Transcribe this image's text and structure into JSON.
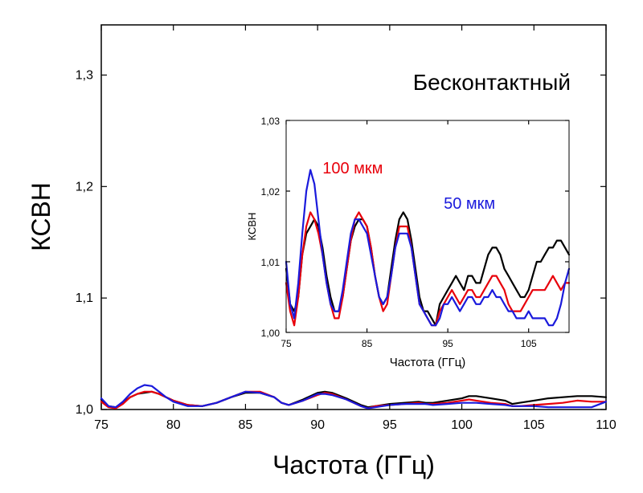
{
  "chart_data": [
    {
      "id": "main",
      "type": "line",
      "xlabel": "Частота (ГГц)",
      "ylabel": "КСВН",
      "annotation": "Бесконтактный",
      "xlim": [
        75,
        110
      ],
      "ylim": [
        1.0,
        1.345
      ],
      "xticks": [
        75,
        80,
        85,
        90,
        95,
        100,
        105,
        110
      ],
      "xtick_labels": [
        "75",
        "80",
        "85",
        "90",
        "95",
        "100",
        "105",
        "110"
      ],
      "yticks": [
        1.0,
        1.1,
        1.2,
        1.3
      ],
      "ytick_labels": [
        "1,0",
        "1,1",
        "1,2",
        "1,3"
      ],
      "grid": false,
      "series": [
        {
          "color": "#000000",
          "x": [
            75,
            75.5,
            76,
            76.5,
            77,
            77.5,
            78,
            78.5,
            79,
            79.5,
            80,
            81,
            82,
            83,
            84,
            85,
            86,
            87,
            87.5,
            88,
            89,
            90,
            90.5,
            91,
            92,
            93,
            93.5,
            94,
            95,
            96,
            97,
            97.5,
            98,
            99,
            100,
            100.5,
            101,
            102,
            103,
            103.5,
            104,
            105,
            106,
            107,
            108,
            109,
            110
          ],
          "y": [
            1.009,
            1.003,
            1.002,
            1.006,
            1.011,
            1.014,
            1.015,
            1.016,
            1.014,
            1.011,
            1.008,
            1.004,
            1.003,
            1.006,
            1.011,
            1.015,
            1.015,
            1.011,
            1.006,
            1.004,
            1.009,
            1.015,
            1.016,
            1.015,
            1.01,
            1.004,
            1.002,
            1.003,
            1.005,
            1.006,
            1.007,
            1.006,
            1.006,
            1.008,
            1.01,
            1.012,
            1.012,
            1.01,
            1.008,
            1.005,
            1.006,
            1.008,
            1.01,
            1.011,
            1.012,
            1.012,
            1.011
          ]
        },
        {
          "color": "#e8000b",
          "x": [
            75,
            75.5,
            76,
            76.5,
            77,
            77.5,
            78,
            78.5,
            79,
            79.5,
            80,
            81,
            82,
            83,
            84,
            85,
            86,
            87,
            87.5,
            88,
            89,
            90,
            90.5,
            91,
            92,
            93,
            93.5,
            94,
            95,
            96,
            97,
            97.5,
            98,
            99,
            100,
            100.5,
            101,
            102,
            103,
            103.5,
            104,
            105,
            106,
            107,
            108,
            109,
            110
          ],
          "y": [
            1.007,
            1.002,
            1.001,
            1.005,
            1.011,
            1.014,
            1.016,
            1.016,
            1.014,
            1.011,
            1.008,
            1.004,
            1.003,
            1.006,
            1.011,
            1.016,
            1.016,
            1.011,
            1.006,
            1.004,
            1.008,
            1.013,
            1.015,
            1.014,
            1.009,
            1.003,
            1.001,
            1.003,
            1.004,
            1.005,
            1.006,
            1.005,
            1.005,
            1.006,
            1.008,
            1.009,
            1.008,
            1.006,
            1.005,
            1.003,
            1.003,
            1.004,
            1.005,
            1.006,
            1.008,
            1.007,
            1.007
          ]
        },
        {
          "color": "#1a1adc",
          "x": [
            75,
            75.5,
            76,
            76.5,
            77,
            77.5,
            78,
            78.5,
            79,
            79.5,
            80,
            81,
            82,
            83,
            84,
            85,
            86,
            87,
            87.5,
            88,
            89,
            90,
            90.5,
            91,
            92,
            93,
            93.5,
            94,
            95,
            96,
            97,
            97.5,
            98,
            99,
            100,
            100.5,
            101,
            102,
            103,
            103.5,
            104,
            105,
            106,
            107,
            108,
            109,
            110
          ],
          "y": [
            1.01,
            1.003,
            1.002,
            1.007,
            1.014,
            1.019,
            1.022,
            1.021,
            1.016,
            1.011,
            1.007,
            1.003,
            1.003,
            1.006,
            1.011,
            1.016,
            1.015,
            1.011,
            1.006,
            1.004,
            1.008,
            1.014,
            1.014,
            1.013,
            1.009,
            1.003,
            1.001,
            1.002,
            1.004,
            1.005,
            1.005,
            1.005,
            1.004,
            1.005,
            1.006,
            1.006,
            1.006,
            1.005,
            1.004,
            1.003,
            1.003,
            1.003,
            1.002,
            1.002,
            1.002,
            1.002,
            1.007
          ]
        }
      ]
    },
    {
      "id": "inset",
      "type": "line",
      "xlabel": "Частота (ГГц)",
      "ylabel": "КСВН",
      "xlim": [
        75,
        110
      ],
      "ylim": [
        1.0,
        1.03
      ],
      "xticks": [
        75,
        85,
        95,
        105
      ],
      "xtick_labels": [
        "75",
        "85",
        "95",
        "105"
      ],
      "yticks": [
        1.0,
        1.01,
        1.02,
        1.03
      ],
      "ytick_labels": [
        "1,00",
        "1,01",
        "1,02",
        "1,03"
      ],
      "grid": false,
      "annotations": [
        {
          "text": "100 мкм",
          "color": "#e8000b",
          "x": 79.5,
          "y": 1.0225
        },
        {
          "text": "50 мкм",
          "color": "#1a1adc",
          "x": 94.5,
          "y": 1.0175
        }
      ],
      "series": [
        {
          "color": "#000000",
          "x": [
            75,
            75.5,
            76,
            76.5,
            77,
            77.5,
            78,
            78.5,
            79,
            79.5,
            80,
            80.5,
            81,
            81.5,
            82,
            82.5,
            83,
            83.5,
            84,
            84.5,
            85,
            85.5,
            86,
            86.5,
            87,
            87.5,
            88,
            88.5,
            89,
            89.5,
            90,
            90.5,
            91,
            91.5,
            92,
            92.5,
            93,
            93.5,
            94,
            94.5,
            95,
            95.5,
            96,
            96.5,
            97,
            97.5,
            98,
            98.5,
            99,
            99.5,
            100,
            100.5,
            101,
            101.5,
            102,
            102.5,
            103,
            103.5,
            104,
            104.5,
            105,
            105.5,
            106,
            106.5,
            107,
            107.5,
            108,
            108.5,
            109,
            109.5,
            110
          ],
          "y": [
            1.009,
            1.004,
            1.003,
            1.005,
            1.011,
            1.014,
            1.015,
            1.016,
            1.015,
            1.012,
            1.008,
            1.005,
            1.003,
            1.003,
            1.005,
            1.009,
            1.013,
            1.015,
            1.016,
            1.016,
            1.015,
            1.012,
            1.008,
            1.005,
            1.004,
            1.005,
            1.009,
            1.013,
            1.016,
            1.017,
            1.016,
            1.013,
            1.009,
            1.005,
            1.003,
            1.003,
            1.002,
            1.001,
            1.004,
            1.005,
            1.006,
            1.007,
            1.008,
            1.007,
            1.006,
            1.008,
            1.008,
            1.007,
            1.007,
            1.009,
            1.011,
            1.012,
            1.012,
            1.011,
            1.009,
            1.008,
            1.007,
            1.006,
            1.005,
            1.005,
            1.006,
            1.008,
            1.01,
            1.01,
            1.011,
            1.012,
            1.012,
            1.013,
            1.013,
            1.012,
            1.011
          ]
        },
        {
          "color": "#e8000b",
          "x": [
            75,
            75.5,
            76,
            76.5,
            77,
            77.5,
            78,
            78.5,
            79,
            79.5,
            80,
            80.5,
            81,
            81.5,
            82,
            82.5,
            83,
            83.5,
            84,
            84.5,
            85,
            85.5,
            86,
            86.5,
            87,
            87.5,
            88,
            88.5,
            89,
            89.5,
            90,
            90.5,
            91,
            91.5,
            92,
            92.5,
            93,
            93.5,
            94,
            94.5,
            95,
            95.5,
            96,
            96.5,
            97,
            97.5,
            98,
            98.5,
            99,
            99.5,
            100,
            100.5,
            101,
            101.5,
            102,
            102.5,
            103,
            103.5,
            104,
            104.5,
            105,
            105.5,
            106,
            106.5,
            107,
            107.5,
            108,
            108.5,
            109,
            109.5,
            110
          ],
          "y": [
            1.007,
            1.003,
            1.001,
            1.005,
            1.011,
            1.015,
            1.017,
            1.016,
            1.014,
            1.011,
            1.007,
            1.004,
            1.002,
            1.002,
            1.005,
            1.009,
            1.013,
            1.016,
            1.017,
            1.016,
            1.015,
            1.012,
            1.008,
            1.005,
            1.003,
            1.004,
            1.008,
            1.012,
            1.015,
            1.015,
            1.015,
            1.012,
            1.008,
            1.004,
            1.003,
            1.002,
            1.001,
            1.001,
            1.003,
            1.004,
            1.005,
            1.006,
            1.005,
            1.004,
            1.005,
            1.006,
            1.006,
            1.005,
            1.005,
            1.006,
            1.007,
            1.008,
            1.008,
            1.007,
            1.006,
            1.004,
            1.003,
            1.003,
            1.003,
            1.004,
            1.005,
            1.006,
            1.006,
            1.006,
            1.006,
            1.007,
            1.008,
            1.007,
            1.006,
            1.007,
            1.007
          ]
        },
        {
          "color": "#1a1adc",
          "x": [
            75,
            75.5,
            76,
            76.5,
            77,
            77.5,
            78,
            78.5,
            79,
            79.5,
            80,
            80.5,
            81,
            81.5,
            82,
            82.5,
            83,
            83.5,
            84,
            84.5,
            85,
            85.5,
            86,
            86.5,
            87,
            87.5,
            88,
            88.5,
            89,
            89.5,
            90,
            90.5,
            91,
            91.5,
            92,
            92.5,
            93,
            93.5,
            94,
            94.5,
            95,
            95.5,
            96,
            96.5,
            97,
            97.5,
            98,
            98.5,
            99,
            99.5,
            100,
            100.5,
            101,
            101.5,
            102,
            102.5,
            103,
            103.5,
            104,
            104.5,
            105,
            105.5,
            106,
            106.5,
            107,
            107.5,
            108,
            108.5,
            109,
            109.5,
            110
          ],
          "y": [
            1.01,
            1.004,
            1.002,
            1.007,
            1.014,
            1.02,
            1.023,
            1.021,
            1.016,
            1.011,
            1.007,
            1.004,
            1.003,
            1.003,
            1.006,
            1.01,
            1.014,
            1.016,
            1.016,
            1.015,
            1.014,
            1.011,
            1.008,
            1.005,
            1.004,
            1.005,
            1.008,
            1.012,
            1.014,
            1.014,
            1.014,
            1.012,
            1.008,
            1.004,
            1.003,
            1.002,
            1.001,
            1.001,
            1.002,
            1.004,
            1.004,
            1.005,
            1.004,
            1.003,
            1.004,
            1.005,
            1.005,
            1.004,
            1.004,
            1.005,
            1.005,
            1.006,
            1.005,
            1.005,
            1.004,
            1.003,
            1.003,
            1.002,
            1.002,
            1.002,
            1.003,
            1.002,
            1.002,
            1.002,
            1.002,
            1.001,
            1.001,
            1.002,
            1.004,
            1.007,
            1.009
          ]
        }
      ]
    }
  ]
}
